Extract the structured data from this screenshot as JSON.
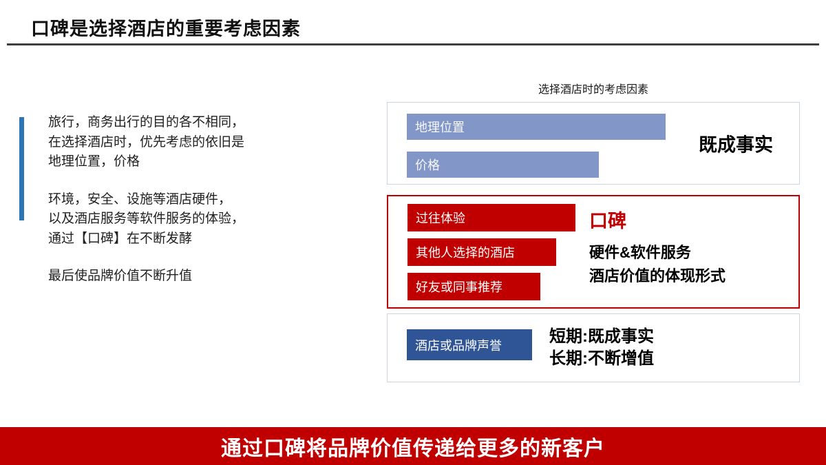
{
  "title": "口碑是选择酒店的重要考虑因素",
  "left_panel": {
    "paragraphs": [
      "旅行，商务出行的目的各不相同，\n在选择酒店时，优先考虑的依旧是\n地理位置，价格",
      "环境，安全、设施等酒店硬件，\n以及酒店服务等软件服务的体验，\n通过【口碑】在不断发酵",
      "最后使品牌价值不断升值"
    ]
  },
  "chart": {
    "title": "选择酒店时的考虑因素",
    "group1": {
      "bars": [
        {
          "label": "地理位置",
          "width_pct": 66
        },
        {
          "label": "价格",
          "width_pct": 49
        }
      ],
      "note": "既成事实"
    },
    "group2": {
      "bars": [
        {
          "label": "过往体验",
          "width_pct": 43
        },
        {
          "label": "其他人选择的酒店",
          "width_pct": 38
        },
        {
          "label": "好友或同事推荐",
          "width_pct": 34
        }
      ],
      "note_headline": "口碑",
      "note_line1": "硬件&软件服务",
      "note_line2": "酒店价值的体现形式"
    },
    "group3": {
      "bars": [
        {
          "label": "酒店或品牌声誉",
          "width_pct": 32
        }
      ],
      "note_line1": "短期:既成事实",
      "note_line2": "长期:不断增值"
    }
  },
  "footer": {
    "text": "通过口碑将品牌价值传递给更多的新客户"
  },
  "colors": {
    "accent_blue": "#2e75b6",
    "bar_blue": "#8296c7",
    "bar_red": "#c00000",
    "bar_navy": "#2f5597",
    "banner_red": "#c00000"
  }
}
